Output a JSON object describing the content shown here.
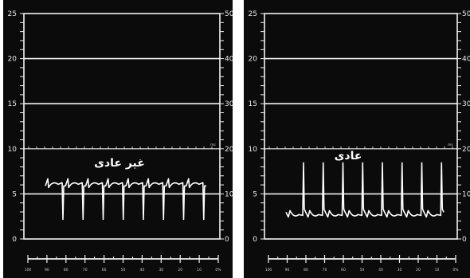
{
  "panels": [
    {
      "id": "left",
      "label": "غير عادى",
      "left_scale": [
        "25",
        "20",
        "15",
        "10",
        "5",
        "0"
      ],
      "right_scale": [
        "50",
        "40",
        "30",
        "20",
        "10",
        "0"
      ],
      "unit": "ms",
      "bottom_scale": [
        "100",
        "90",
        "80",
        "70",
        "60",
        "50",
        "40",
        "30",
        "20",
        "10",
        "0%"
      ],
      "trace_type": "abnormal",
      "beats": 8
    },
    {
      "id": "right",
      "label": "عادى",
      "left_scale": [
        "25",
        "20",
        "15",
        "10",
        "5",
        "0"
      ],
      "right_scale": [
        "50",
        "40",
        "30",
        "20",
        "10",
        "0"
      ],
      "unit": "ms",
      "bottom_scale": [
        "100",
        "90",
        "80",
        "70",
        "60",
        "50",
        "40",
        "30",
        "20",
        "10",
        "0%"
      ],
      "trace_type": "normal",
      "beats": 8
    }
  ],
  "colors": {
    "background": "#0b0b0b",
    "grid": "#f2f2f2",
    "trace": "#ffffff"
  }
}
